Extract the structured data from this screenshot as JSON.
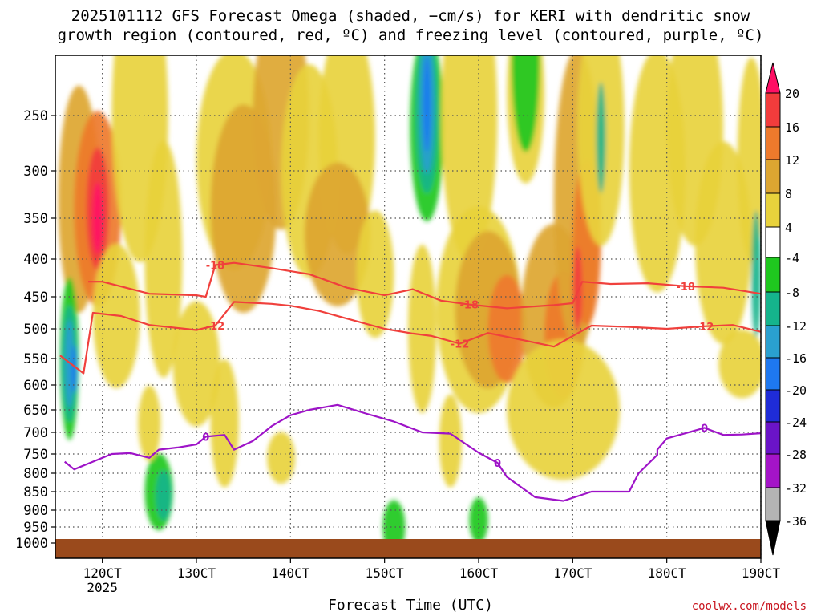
{
  "title_line1": "2025101112 GFS Forecast Omega (shaded, −cm/s) for KERI with dendritic snow",
  "title_line2": "growth region (contoured, red, ºC) and freezing level (contoured, purple, ºC)",
  "xlabel": "Forecast Time (UTC)",
  "credit": "coolwx.com/models",
  "chart_data": {
    "type": "heatmap",
    "title": "2025101112 GFS Forecast Omega (shaded, −cm/s) for KERI with dendritic snow growth region (contoured, red, ºC) and freezing level (contoured, purple, ºC)",
    "xlabel": "Forecast Time (UTC)",
    "ylabel": "",
    "x_ticks": [
      "120CT",
      "130CT",
      "140CT",
      "150CT",
      "160CT",
      "170CT",
      "180CT",
      "190CT"
    ],
    "x_year": "2025",
    "x_range": [
      11.5,
      19.0
    ],
    "y_ticks": [
      250,
      300,
      350,
      400,
      450,
      500,
      550,
      600,
      650,
      700,
      750,
      800,
      850,
      900,
      950,
      1000
    ],
    "y_range": [
      200,
      1020
    ],
    "grid": true,
    "colorbar": {
      "ticks": [
        20,
        16,
        12,
        8,
        4,
        -4,
        -8,
        -12,
        -16,
        -20,
        -24,
        -28,
        -32,
        -36
      ],
      "colors": [
        "#ff0f64",
        "#f23c3c",
        "#ee7a2c",
        "#dda631",
        "#e8d23c",
        "#ffffff",
        "#1fc81f",
        "#15b48c",
        "#2aa0d0",
        "#1e78f0",
        "#1f2cd8",
        "#6a14c8",
        "#a414c8",
        "#b4b4b4",
        "#000000"
      ]
    },
    "contours": [
      {
        "level": -18,
        "color": "#f0403c",
        "points": [
          [
            11.85,
            430
          ],
          [
            12.0,
            430
          ],
          [
            12.5,
            446
          ],
          [
            13.0,
            448
          ],
          [
            13.1,
            450
          ],
          [
            13.2,
            408
          ],
          [
            13.4,
            405
          ],
          [
            13.8,
            412
          ],
          [
            14.2,
            420
          ],
          [
            14.6,
            438
          ],
          [
            15.0,
            448
          ],
          [
            15.3,
            440
          ],
          [
            15.6,
            456
          ],
          [
            15.9,
            462
          ],
          [
            16.3,
            468
          ],
          [
            16.8,
            463
          ],
          [
            17.0,
            460
          ],
          [
            17.1,
            430
          ],
          [
            17.4,
            433
          ],
          [
            17.8,
            432
          ],
          [
            18.2,
            436
          ],
          [
            18.6,
            438
          ],
          [
            19.0,
            446
          ]
        ]
      },
      {
        "level": -12,
        "color": "#f0403c",
        "points": [
          [
            11.55,
            545
          ],
          [
            11.8,
            578
          ],
          [
            11.9,
            475
          ],
          [
            12.2,
            480
          ],
          [
            12.5,
            494
          ],
          [
            13.0,
            502
          ],
          [
            13.2,
            495
          ],
          [
            13.4,
            458
          ],
          [
            13.8,
            461
          ],
          [
            14.0,
            464
          ],
          [
            14.3,
            472
          ],
          [
            14.7,
            488
          ],
          [
            15.0,
            500
          ],
          [
            15.3,
            508
          ],
          [
            15.5,
            512
          ],
          [
            15.8,
            525
          ],
          [
            16.1,
            507
          ],
          [
            16.5,
            520
          ],
          [
            16.8,
            530
          ],
          [
            17.0,
            512
          ],
          [
            17.2,
            495
          ],
          [
            17.6,
            497
          ],
          [
            18.0,
            500
          ],
          [
            18.4,
            496
          ],
          [
            18.7,
            494
          ],
          [
            19.0,
            505
          ]
        ]
      },
      {
        "level": 0,
        "color": "#9e14c8",
        "points": [
          [
            11.6,
            770
          ],
          [
            11.7,
            790
          ],
          [
            11.9,
            770
          ],
          [
            12.1,
            750
          ],
          [
            12.3,
            748
          ],
          [
            12.5,
            760
          ],
          [
            12.6,
            740
          ],
          [
            12.8,
            735
          ],
          [
            13.0,
            728
          ],
          [
            13.1,
            710
          ],
          [
            13.3,
            706
          ],
          [
            13.4,
            740
          ],
          [
            13.6,
            720
          ],
          [
            13.8,
            686
          ],
          [
            14.0,
            662
          ],
          [
            14.2,
            650
          ],
          [
            14.5,
            640
          ],
          [
            14.8,
            658
          ],
          [
            15.1,
            676
          ],
          [
            15.4,
            700
          ],
          [
            15.7,
            703
          ],
          [
            16.0,
            747
          ],
          [
            16.2,
            773
          ],
          [
            16.3,
            810
          ],
          [
            16.6,
            865
          ],
          [
            16.9,
            875
          ],
          [
            17.2,
            850
          ],
          [
            17.6,
            850
          ],
          [
            17.7,
            800
          ],
          [
            17.9,
            752
          ],
          [
            17.9,
            740
          ],
          [
            18.0,
            714
          ],
          [
            18.2,
            702
          ],
          [
            18.4,
            690
          ],
          [
            18.6,
            706
          ],
          [
            18.8,
            705
          ],
          [
            19.0,
            702
          ]
        ]
      }
    ]
  }
}
